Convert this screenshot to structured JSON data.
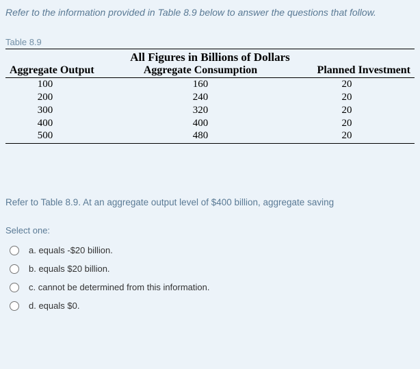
{
  "intro": "Refer to the information provided in Table 8.9 below to answer the questions that follow.",
  "table_label": "Table 8.9",
  "table": {
    "super_header": "All Figures in Billions of Dollars",
    "columns": [
      "Aggregate Output",
      "Aggregate Consumption",
      "Planned Investment"
    ],
    "rows": [
      [
        "100",
        "160",
        "20"
      ],
      [
        "200",
        "240",
        "20"
      ],
      [
        "300",
        "320",
        "20"
      ],
      [
        "400",
        "400",
        "20"
      ],
      [
        "500",
        "480",
        "20"
      ]
    ],
    "border_color": "#000000",
    "text_color": "#000000",
    "header_fontsize": 16,
    "cell_fontsize": 15
  },
  "question": "Refer to Table 8.9. At an aggregate output level of $400 billion, aggregate saving",
  "select_label": "Select one:",
  "options": [
    {
      "label": "a. equals -$20 billion."
    },
    {
      "label": "b. equals $20 billion."
    },
    {
      "label": "c. cannot be determined from this information."
    },
    {
      "label": "d. equals $0."
    }
  ],
  "colors": {
    "background": "#ecf3f9",
    "accent_text": "#5a7a95"
  }
}
